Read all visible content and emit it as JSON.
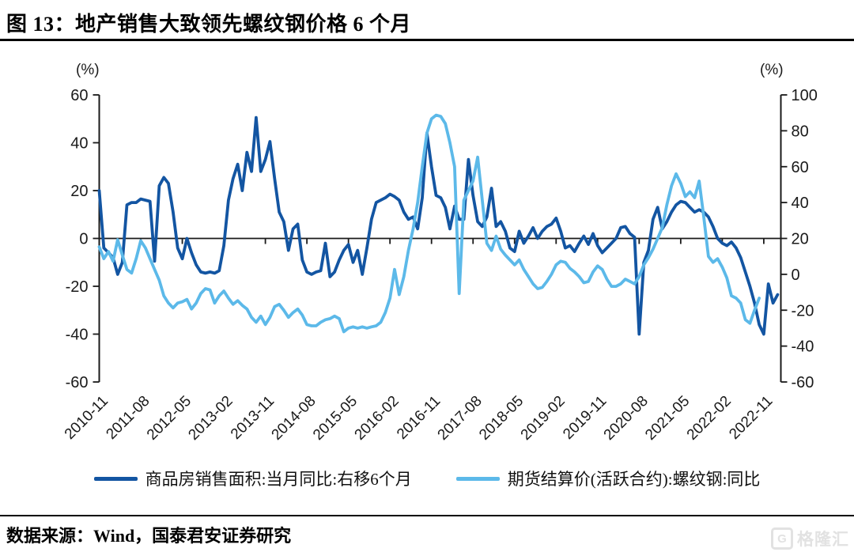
{
  "title": "图 13：地产销售大致领先螺纹钢价格 6 个月",
  "footer": {
    "source_text": "数据来源：Wind，国泰君安证券研究"
  },
  "watermark": {
    "logo_letter": "G",
    "text": "格隆汇"
  },
  "colors": {
    "dark_series": "#1355A2",
    "light_series": "#5CB9E9",
    "axis": "#1a1a1a",
    "divider": "#000000",
    "watermark": "#e2e2e2"
  },
  "chart_data": {
    "type": "line",
    "title": "地产销售大致领先螺纹钢价格6个月",
    "grid": false,
    "zero_line": true,
    "legend_position": "bottom",
    "start_month": "2010-11",
    "x_tick_interval_months": 9,
    "x_tick_labels": [
      "2010-11",
      "2011-08",
      "2012-05",
      "2013-02",
      "2013-11",
      "2014-08",
      "2015-05",
      "2016-02",
      "2016-11",
      "2017-08",
      "2018-05",
      "2019-02",
      "2019-11",
      "2020-08",
      "2021-05",
      "2022-02",
      "2022-11"
    ],
    "left_axis": {
      "unit_label": "(%)",
      "min": -60,
      "max": 60,
      "ticks": [
        60,
        40,
        20,
        0,
        -20,
        -40,
        -60
      ]
    },
    "right_axis": {
      "unit_label": "(%)",
      "min": -60,
      "max": 100,
      "ticks": [
        100,
        80,
        60,
        40,
        20,
        0,
        -20,
        -40,
        -60
      ]
    },
    "series": [
      {
        "name": "商品房销售面积:当月同比:右移6个月",
        "axis": "left",
        "color": "#1355A2",
        "values": [
          20,
          -4,
          -6,
          -8,
          -15,
          -10,
          14,
          15,
          15,
          16.5,
          16,
          15.5,
          -9.5,
          22,
          25.5,
          23,
          11,
          -4,
          -8.5,
          0,
          -6,
          -11,
          -14,
          -14.5,
          -14,
          -14.5,
          -13.5,
          -3,
          16,
          25,
          31,
          20,
          36,
          28,
          50.5,
          28,
          33,
          40.5,
          25,
          11,
          7,
          -5,
          4,
          6,
          -9,
          -14,
          -15,
          -14,
          -13.5,
          -2,
          -16,
          -14,
          -9,
          -5,
          -2.5,
          -10,
          -5,
          -15,
          -4,
          8,
          15,
          16,
          17,
          18.5,
          17.5,
          16,
          11,
          8,
          9,
          4,
          17,
          44,
          30,
          18,
          17,
          13,
          4,
          13.5,
          8,
          8,
          33,
          18,
          7,
          5,
          9,
          21,
          5,
          7,
          3,
          -4,
          -5.5,
          3,
          -2,
          1,
          4.5,
          0,
          3,
          5,
          6,
          8.5,
          3,
          -4,
          -3,
          -5.5,
          -2,
          1,
          -2.5,
          2,
          -3,
          -6,
          -4,
          -2,
          0,
          4.5,
          5,
          2,
          0.5,
          -40,
          -10,
          -5,
          8,
          13,
          4,
          7,
          11,
          14,
          15.5,
          15,
          13,
          11,
          12,
          11,
          9,
          5,
          0,
          -2,
          -3,
          -1.5,
          -4,
          -8,
          -14,
          -20,
          -27,
          -36,
          -40,
          -19,
          -27,
          -23.5
        ]
      },
      {
        "name": "期货结算价(活跃合约):螺纹钢:同比",
        "axis": "right",
        "color": "#5CB9E9",
        "values": [
          15.3,
          8.7,
          12.7,
          7.3,
          19.3,
          10.7,
          2.7,
          0.7,
          8.7,
          18.7,
          14.7,
          8.7,
          2.7,
          -3.3,
          -12,
          -16,
          -18.7,
          -16,
          -15.3,
          -14,
          -19.3,
          -16,
          -10.7,
          -8,
          -8.7,
          -16,
          -12,
          -9.3,
          -13.3,
          -16.7,
          -14.7,
          -17.3,
          -19.3,
          -24,
          -26.7,
          -23.3,
          -28,
          -24,
          -18,
          -16.7,
          -20,
          -24,
          -21.3,
          -19.3,
          -22.7,
          -28,
          -28.7,
          -28.7,
          -26.7,
          -25.3,
          -24.7,
          -23.3,
          -24.7,
          -32,
          -30,
          -29.3,
          -30,
          -29.3,
          -30,
          -29.3,
          -28.7,
          -26.7,
          -21.3,
          -13.3,
          2.7,
          -11.3,
          -1.3,
          13.3,
          25.3,
          40,
          60,
          78.7,
          86.7,
          88.7,
          88,
          84,
          73.3,
          60,
          -10.7,
          41.3,
          46.7,
          52,
          65.3,
          41.3,
          17.3,
          13.3,
          21.3,
          14,
          10.7,
          8,
          5.3,
          8,
          2.7,
          -1.3,
          -5.3,
          -8,
          -7.3,
          -4,
          0,
          5.3,
          7.3,
          6.7,
          3.3,
          1.3,
          -1.3,
          -4.7,
          -4,
          1.3,
          4.7,
          2.7,
          -2.7,
          -6.7,
          -6.7,
          -5.3,
          -2.7,
          -4,
          -5.3,
          -1.3,
          5.3,
          9.3,
          14,
          20,
          26,
          38.7,
          49.3,
          56,
          50.7,
          43.3,
          46,
          42.7,
          52,
          32,
          10,
          6.7,
          8.7,
          4,
          -2,
          -12,
          -13.3,
          -16,
          -25.3,
          -27.3,
          -20,
          -13.3
        ]
      }
    ]
  }
}
